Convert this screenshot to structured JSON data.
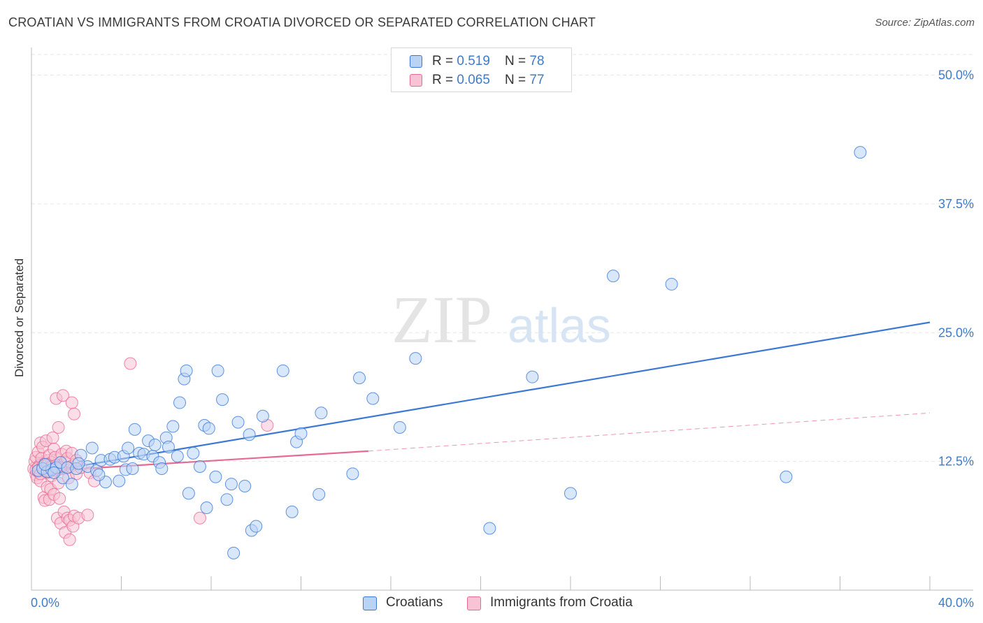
{
  "header": {
    "title": "CROATIAN VS IMMIGRANTS FROM CROATIA DIVORCED OR SEPARATED CORRELATION CHART",
    "source": "Source: ZipAtlas.com"
  },
  "legend": {
    "rows": [
      {
        "r_label": "R = ",
        "r_value": "0.519",
        "n_label": "N = ",
        "n_value": "78"
      },
      {
        "r_label": "R = ",
        "r_value": "0.065",
        "n_label": "N = ",
        "n_value": "77"
      }
    ]
  },
  "bottom_legend": {
    "items": [
      {
        "label": "Croatians"
      },
      {
        "label": "Immigrants from Croatia"
      }
    ]
  },
  "watermark": {
    "zip": "ZIP",
    "atlas": "atlas"
  },
  "colors": {
    "blue": "#3b78d4",
    "blue_fill": "#b9d3f5",
    "pink": "#e66a93",
    "pink_fill": "#f8c3d4",
    "axis_text": "#3d7cc9",
    "grid": "#e6e6e6"
  },
  "chart_data": {
    "type": "scatter",
    "title": "CROATIAN VS IMMIGRANTS FROM CROATIA DIVORCED OR SEPARATED CORRELATION CHART",
    "xlabel": "",
    "ylabel": "Divorced or Separated",
    "xlim": [
      0,
      40
    ],
    "ylim": [
      0,
      52
    ],
    "x_tick_labels": [
      "0.0%",
      "40.0%"
    ],
    "y_tick_labels": [
      "12.5%",
      "25.0%",
      "37.5%",
      "50.0%"
    ],
    "y_ticks": [
      12.5,
      25.0,
      37.5,
      50.0
    ],
    "grid": true,
    "series": [
      {
        "name": "Croatians",
        "color": "#3b78d4",
        "trend": {
          "x": [
            0.1,
            40
          ],
          "y": [
            11.3,
            26.0
          ],
          "style": "solid"
        },
        "points": [
          [
            0.3,
            11.6
          ],
          [
            0.5,
            11.8
          ],
          [
            0.7,
            11.5
          ],
          [
            0.9,
            11.7
          ],
          [
            1.1,
            11.9
          ],
          [
            1.3,
            12.4
          ],
          [
            1.4,
            10.9
          ],
          [
            1.6,
            11.9
          ],
          [
            1.8,
            10.3
          ],
          [
            2.0,
            11.8
          ],
          [
            2.2,
            13.1
          ],
          [
            2.5,
            12.0
          ],
          [
            2.7,
            13.8
          ],
          [
            2.9,
            11.6
          ],
          [
            3.1,
            12.6
          ],
          [
            3.3,
            10.5
          ],
          [
            3.5,
            12.7
          ],
          [
            3.7,
            12.9
          ],
          [
            3.9,
            10.6
          ],
          [
            4.1,
            13.0
          ],
          [
            4.2,
            11.7
          ],
          [
            4.3,
            13.8
          ],
          [
            4.5,
            11.8
          ],
          [
            4.6,
            15.6
          ],
          [
            4.8,
            13.3
          ],
          [
            5.0,
            13.2
          ],
          [
            5.2,
            14.5
          ],
          [
            5.4,
            13.0
          ],
          [
            5.5,
            14.1
          ],
          [
            5.7,
            12.4
          ],
          [
            5.8,
            11.8
          ],
          [
            6.0,
            14.8
          ],
          [
            6.1,
            13.9
          ],
          [
            6.3,
            15.9
          ],
          [
            6.5,
            13.0
          ],
          [
            6.6,
            18.2
          ],
          [
            6.8,
            20.5
          ],
          [
            6.9,
            21.3
          ],
          [
            7.0,
            9.4
          ],
          [
            7.2,
            13.3
          ],
          [
            7.5,
            12.0
          ],
          [
            7.7,
            16.0
          ],
          [
            7.8,
            8.0
          ],
          [
            7.9,
            15.7
          ],
          [
            8.2,
            11.0
          ],
          [
            8.3,
            21.3
          ],
          [
            8.5,
            18.5
          ],
          [
            8.7,
            8.8
          ],
          [
            8.9,
            10.3
          ],
          [
            9.0,
            3.6
          ],
          [
            9.2,
            16.3
          ],
          [
            9.5,
            10.1
          ],
          [
            9.7,
            15.1
          ],
          [
            9.8,
            5.8
          ],
          [
            10.0,
            6.2
          ],
          [
            10.3,
            16.9
          ],
          [
            11.2,
            21.3
          ],
          [
            11.6,
            7.6
          ],
          [
            11.8,
            14.4
          ],
          [
            12.0,
            15.2
          ],
          [
            12.8,
            9.3
          ],
          [
            12.9,
            17.2
          ],
          [
            14.3,
            11.3
          ],
          [
            14.6,
            20.6
          ],
          [
            15.2,
            18.6
          ],
          [
            16.4,
            15.8
          ],
          [
            17.1,
            22.5
          ],
          [
            20.4,
            6.0
          ],
          [
            22.3,
            20.7
          ],
          [
            24.0,
            9.4
          ],
          [
            25.9,
            30.5
          ],
          [
            28.5,
            29.7
          ],
          [
            33.6,
            11.0
          ],
          [
            36.9,
            42.5
          ],
          [
            0.6,
            12.2
          ],
          [
            1.0,
            11.4
          ],
          [
            2.1,
            12.3
          ],
          [
            3.0,
            11.2
          ]
        ]
      },
      {
        "name": "Immigrants from Croatia",
        "color": "#e66a93",
        "trend": {
          "x": [
            0.1,
            15.0,
            40
          ],
          "y": [
            11.5,
            13.5,
            17.2
          ],
          "style": "solid-then-dashed"
        },
        "points": [
          [
            0.1,
            11.8
          ],
          [
            0.15,
            12.5
          ],
          [
            0.2,
            11.2
          ],
          [
            0.2,
            12.9
          ],
          [
            0.25,
            10.9
          ],
          [
            0.3,
            13.4
          ],
          [
            0.3,
            11.5
          ],
          [
            0.35,
            12.1
          ],
          [
            0.4,
            14.3
          ],
          [
            0.4,
            10.6
          ],
          [
            0.45,
            12.8
          ],
          [
            0.5,
            11.9
          ],
          [
            0.5,
            13.9
          ],
          [
            0.55,
            9.0
          ],
          [
            0.6,
            12.3
          ],
          [
            0.6,
            8.7
          ],
          [
            0.65,
            14.5
          ],
          [
            0.7,
            11.4
          ],
          [
            0.7,
            10.0
          ],
          [
            0.75,
            12.6
          ],
          [
            0.8,
            13.1
          ],
          [
            0.8,
            8.8
          ],
          [
            0.85,
            9.8
          ],
          [
            0.9,
            12.4
          ],
          [
            0.9,
            11.1
          ],
          [
            0.95,
            14.8
          ],
          [
            1.0,
            13.7
          ],
          [
            1.0,
            9.3
          ],
          [
            1.05,
            12.9
          ],
          [
            1.1,
            18.6
          ],
          [
            1.1,
            11.6
          ],
          [
            1.15,
            7.0
          ],
          [
            1.2,
            15.8
          ],
          [
            1.2,
            10.4
          ],
          [
            1.25,
            8.9
          ],
          [
            1.3,
            12.1
          ],
          [
            1.3,
            6.5
          ],
          [
            1.35,
            13.2
          ],
          [
            1.4,
            11.8
          ],
          [
            1.4,
            18.9
          ],
          [
            1.45,
            7.6
          ],
          [
            1.5,
            12.5
          ],
          [
            1.5,
            5.6
          ],
          [
            1.55,
            13.5
          ],
          [
            1.6,
            7.0
          ],
          [
            1.6,
            12.8
          ],
          [
            1.65,
            10.9
          ],
          [
            1.7,
            6.8
          ],
          [
            1.7,
            4.9
          ],
          [
            1.75,
            12.0
          ],
          [
            1.8,
            18.2
          ],
          [
            1.8,
            13.3
          ],
          [
            1.85,
            6.2
          ],
          [
            1.9,
            17.1
          ],
          [
            1.9,
            7.2
          ],
          [
            2.0,
            12.6
          ],
          [
            2.0,
            11.3
          ],
          [
            2.1,
            7.0
          ],
          [
            2.2,
            11.9
          ],
          [
            2.5,
            7.3
          ],
          [
            2.6,
            11.4
          ],
          [
            2.8,
            10.6
          ],
          [
            4.4,
            22.0
          ],
          [
            7.5,
            7.0
          ],
          [
            10.5,
            16.0
          ],
          [
            0.2,
            11.7
          ],
          [
            0.3,
            11.9
          ],
          [
            0.4,
            11.3
          ],
          [
            0.5,
            12.0
          ],
          [
            0.6,
            11.6
          ],
          [
            0.7,
            12.2
          ],
          [
            0.8,
            11.5
          ],
          [
            0.9,
            12.0
          ],
          [
            1.0,
            11.8
          ],
          [
            1.1,
            12.1
          ],
          [
            1.2,
            11.7
          ],
          [
            1.3,
            11.9
          ]
        ]
      }
    ]
  }
}
